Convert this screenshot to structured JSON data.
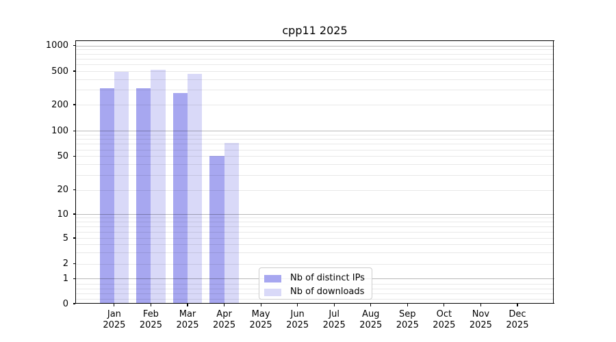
{
  "chart_data": {
    "type": "bar",
    "title": "cpp11 2025",
    "x_months": [
      "Jan",
      "Feb",
      "Mar",
      "Apr",
      "May",
      "Jun",
      "Jul",
      "Aug",
      "Sep",
      "Oct",
      "Nov",
      "Dec"
    ],
    "x_year": "2025",
    "series": [
      {
        "name": "Nb of distinct IPs",
        "key": "distinct-ips",
        "color": "#a7a7f0",
        "values": [
          313,
          313,
          275,
          50,
          null,
          null,
          null,
          null,
          null,
          null,
          null,
          null
        ]
      },
      {
        "name": "Nb of downloads",
        "key": "downloads",
        "color": "#d9d9f8",
        "values": [
          488,
          519,
          464,
          72,
          null,
          null,
          null,
          null,
          null,
          null,
          null,
          null
        ]
      }
    ],
    "y_axis": {
      "scale": "symlog",
      "ticks": [
        0,
        1,
        2,
        5,
        10,
        20,
        50,
        100,
        200,
        500,
        1000
      ],
      "ylim": [
        0,
        1000
      ]
    },
    "grid": {
      "on": true,
      "major_values": [
        1,
        10,
        100,
        1000
      ],
      "minor_values": [
        0.2,
        0.4,
        0.6,
        0.8,
        2,
        3,
        4,
        5,
        6,
        7,
        8,
        9,
        20,
        30,
        40,
        50,
        60,
        70,
        80,
        90,
        200,
        300,
        400,
        500,
        600,
        700,
        800,
        900
      ]
    },
    "legend": {
      "position": "bottom-center",
      "items": [
        "Nb of distinct IPs",
        "Nb of downloads"
      ]
    }
  },
  "colors": {
    "series_distinct_ips": "#a7a7f0",
    "series_downloads": "#d9d9f8",
    "major_grid": "rgba(0,0,0,0.28)",
    "minor_grid": "rgba(0,0,0,0.09)",
    "spine": "#000000",
    "background": "#ffffff"
  }
}
